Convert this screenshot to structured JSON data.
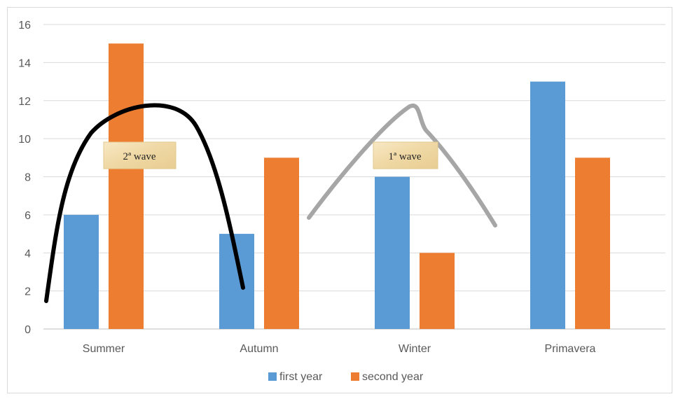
{
  "chart_data": {
    "type": "bar",
    "categories": [
      "Summer",
      "Autumn",
      "Winter",
      "Primavera"
    ],
    "series": [
      {
        "name": "first year",
        "values": [
          6,
          5,
          8,
          13
        ],
        "color": "#5b9bd5"
      },
      {
        "name": "second year",
        "values": [
          15,
          9,
          4,
          9
        ],
        "color": "#ed7d31"
      }
    ],
    "ylim": [
      0,
      16
    ],
    "yticks": [
      0,
      2,
      4,
      6,
      8,
      10,
      12,
      14,
      16
    ],
    "grid": true,
    "legend_position": "bottom",
    "annotations": [
      {
        "id": "second-wave",
        "label": "2ª wave",
        "color": "#000000"
      },
      {
        "id": "first-wave",
        "label": "1ª wave",
        "color": "#a6a6a6"
      }
    ]
  }
}
